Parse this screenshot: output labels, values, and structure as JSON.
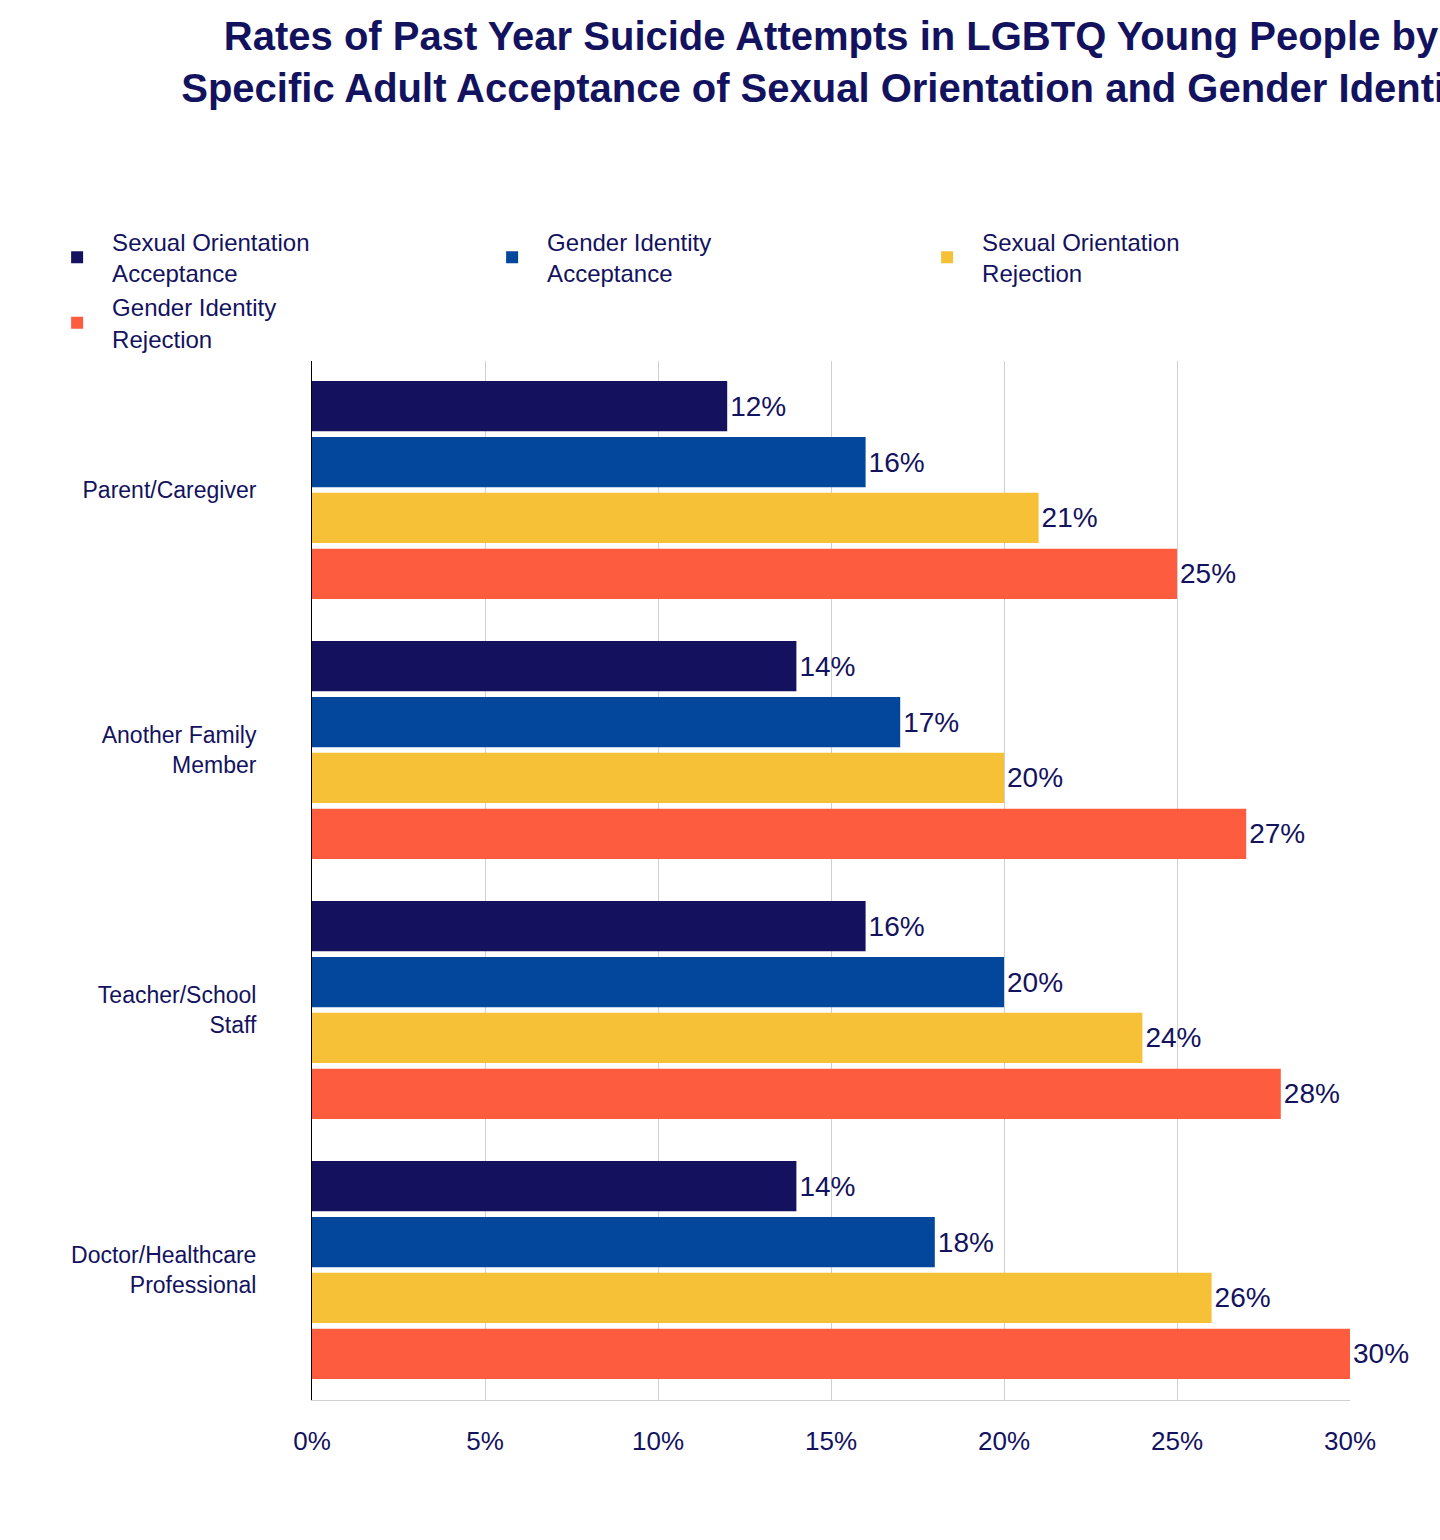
{
  "chart_data": {
    "type": "bar",
    "orientation": "horizontal",
    "title": "Rates of Past Year Suicide Attempts in LGBTQ Young People by\nSpecific Adult Acceptance of Sexual Orientation and Gender Identity",
    "categories": [
      "Parent/Caregiver",
      "Another Family Member",
      "Teacher/School Staff",
      "Doctor/Healthcare Professional"
    ],
    "series": [
      {
        "name": "Sexual Orientation Acceptance",
        "color": "#14125e",
        "values": [
          12,
          14,
          16,
          14
        ],
        "value_labels": [
          "12%",
          "14%",
          "16%",
          "14%"
        ]
      },
      {
        "name": "Gender Identity Acceptance",
        "color": "#03479c",
        "values": [
          16,
          17,
          20,
          18
        ],
        "value_labels": [
          "16%",
          "17%",
          "20%",
          "18%"
        ]
      },
      {
        "name": "Sexual Orientation Rejection",
        "color": "#f6c037",
        "values": [
          21,
          20,
          24,
          26
        ],
        "value_labels": [
          "21%",
          "20%",
          "24%",
          "26%"
        ]
      },
      {
        "name": "Gender Identity Rejection",
        "color": "#fe5c3f",
        "values": [
          25,
          27,
          28,
          30
        ],
        "value_labels": [
          "25%",
          "27%",
          "28%",
          "30%"
        ]
      }
    ],
    "xlim": [
      0,
      30
    ],
    "xticks": [
      {
        "value": 0,
        "label": "0%"
      },
      {
        "value": 5,
        "label": "5%"
      },
      {
        "value": 10,
        "label": "10%"
      },
      {
        "value": 15,
        "label": "15%"
      },
      {
        "value": 20,
        "label": "20%"
      },
      {
        "value": 25,
        "label": "25%"
      },
      {
        "value": 30,
        "label": "30%"
      }
    ],
    "grid": true,
    "legend": "top",
    "data_labels": true
  }
}
